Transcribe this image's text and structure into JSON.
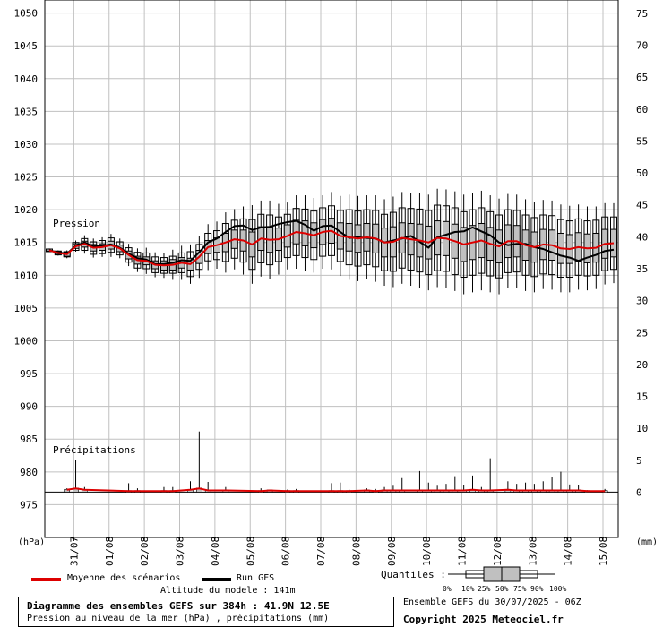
{
  "chart_data": {
    "type": "box",
    "y_left": {
      "unit_label": "(hPa)",
      "range": [
        970,
        1052
      ],
      "ticks": [
        975,
        980,
        985,
        990,
        995,
        1000,
        1005,
        1010,
        1015,
        1020,
        1025,
        1030,
        1035,
        1040,
        1045,
        1050
      ]
    },
    "y_right": {
      "unit_label": "(mm)",
      "range": [
        -7.1,
        77.1
      ],
      "ticks": [
        0,
        5,
        10,
        15,
        20,
        25,
        30,
        35,
        40,
        45,
        50,
        55,
        60,
        65,
        70,
        75
      ]
    },
    "x": {
      "range_days": [
        0,
        16
      ],
      "tick_labels": [
        "31/07",
        "01/08",
        "02/08",
        "03/08",
        "04/08",
        "05/08",
        "06/08",
        "07/08",
        "08/08",
        "09/08",
        "10/08",
        "11/08",
        "12/08",
        "13/08",
        "14/08",
        "15/08"
      ]
    },
    "annotations": {
      "pressure": "Pression",
      "precip": "Précipitations"
    },
    "pressure": {
      "days": [
        0.0,
        0.25,
        0.5,
        0.75,
        1.0,
        1.25,
        1.5,
        1.75,
        2.0,
        2.25,
        2.5,
        2.75,
        3.0,
        3.25,
        3.5,
        3.75,
        4.0,
        4.25,
        4.5,
        4.75,
        5.0,
        5.25,
        5.5,
        5.75,
        6.0,
        6.25,
        6.5,
        6.75,
        7.0,
        7.25,
        7.5,
        7.75,
        8.0,
        8.25,
        8.5,
        8.75,
        9.0,
        9.25,
        9.5,
        9.75,
        10.0,
        10.25,
        10.5,
        10.75,
        11.0,
        11.25,
        11.5,
        11.75,
        12.0,
        12.25,
        12.5,
        12.75,
        13.0,
        13.25,
        13.5,
        13.75,
        14.0,
        14.25,
        14.5,
        14.75,
        15.0,
        15.25,
        15.5,
        15.75,
        16.0
      ],
      "mean": [
        1013.8,
        1013.4,
        1013.2,
        1014.4,
        1014.8,
        1014.2,
        1014.3,
        1014.6,
        1014.1,
        1013.1,
        1012.3,
        1012.2,
        1011.6,
        1011.5,
        1011.6,
        1011.9,
        1011.7,
        1012.8,
        1014.3,
        1014.6,
        1015.0,
        1015.5,
        1015.3,
        1014.7,
        1015.6,
        1015.4,
        1015.5,
        1016.0,
        1016.6,
        1016.4,
        1016.1,
        1016.6,
        1016.8,
        1016.0,
        1015.8,
        1015.6,
        1015.8,
        1015.6,
        1015.0,
        1015.1,
        1015.7,
        1015.5,
        1015.3,
        1015.0,
        1015.7,
        1015.6,
        1015.2,
        1014.7,
        1015.0,
        1015.3,
        1014.8,
        1014.4,
        1015.2,
        1015.2,
        1014.6,
        1014.3,
        1014.7,
        1014.6,
        1014.1,
        1014.0,
        1014.3,
        1014.1,
        1014.2,
        1014.8,
        1014.9
      ],
      "gfs": [
        1013.8,
        1013.5,
        1013.3,
        1014.5,
        1015.0,
        1014.4,
        1014.5,
        1014.7,
        1014.2,
        1013.3,
        1012.6,
        1012.4,
        1011.7,
        1011.7,
        1011.9,
        1012.3,
        1012.2,
        1013.5,
        1015.0,
        1015.6,
        1016.6,
        1017.5,
        1017.6,
        1016.9,
        1017.3,
        1017.4,
        1017.8,
        1018.1,
        1018.3,
        1017.7,
        1016.8,
        1017.5,
        1017.6,
        1016.6,
        1015.7,
        1015.8,
        1015.7,
        1015.6,
        1015.0,
        1015.3,
        1015.6,
        1016.0,
        1015.1,
        1014.2,
        1015.8,
        1016.2,
        1016.6,
        1016.7,
        1017.3,
        1016.7,
        1016.1,
        1015.0,
        1014.6,
        1014.8,
        1014.8,
        1014.3,
        1014.0,
        1013.5,
        1013.0,
        1012.7,
        1012.2,
        1012.7,
        1013.1,
        1013.7,
        1013.9
      ],
      "boxes": [
        {
          "d": 0.0,
          "p0": 1013.6,
          "p10": 1013.6,
          "p25": 1013.7,
          "p75": 1014.0,
          "p90": 1014.0,
          "p100": 1014.1
        },
        {
          "d": 0.25,
          "p0": 1013.0,
          "p10": 1013.1,
          "p25": 1013.2,
          "p75": 1013.6,
          "p90": 1013.7,
          "p100": 1013.8
        },
        {
          "d": 0.5,
          "p0": 1012.6,
          "p10": 1012.8,
          "p25": 1012.9,
          "p75": 1013.5,
          "p90": 1013.6,
          "p100": 1013.8
        },
        {
          "d": 0.75,
          "p0": 1013.6,
          "p10": 1013.8,
          "p25": 1014.1,
          "p75": 1014.8,
          "p90": 1015.0,
          "p100": 1015.3
        },
        {
          "d": 1.0,
          "p0": 1013.3,
          "p10": 1013.8,
          "p25": 1014.3,
          "p75": 1015.2,
          "p90": 1015.6,
          "p100": 1016.1
        },
        {
          "d": 1.25,
          "p0": 1012.7,
          "p10": 1013.2,
          "p25": 1013.7,
          "p75": 1014.7,
          "p90": 1015.1,
          "p100": 1015.6
        },
        {
          "d": 1.5,
          "p0": 1012.8,
          "p10": 1013.3,
          "p25": 1013.8,
          "p75": 1014.8,
          "p90": 1015.3,
          "p100": 1015.8
        },
        {
          "d": 1.75,
          "p0": 1012.8,
          "p10": 1013.5,
          "p25": 1014.0,
          "p75": 1015.2,
          "p90": 1015.7,
          "p100": 1016.3
        },
        {
          "d": 2.0,
          "p0": 1012.6,
          "p10": 1013.1,
          "p25": 1013.6,
          "p75": 1014.6,
          "p90": 1015.1,
          "p100": 1015.6
        },
        {
          "d": 2.25,
          "p0": 1011.4,
          "p10": 1012.0,
          "p25": 1012.5,
          "p75": 1013.7,
          "p90": 1014.2,
          "p100": 1014.8
        },
        {
          "d": 2.5,
          "p0": 1010.5,
          "p10": 1011.1,
          "p25": 1011.7,
          "p75": 1012.9,
          "p90": 1013.5,
          "p100": 1014.1
        },
        {
          "d": 2.75,
          "p0": 1010.2,
          "p10": 1011.0,
          "p25": 1011.6,
          "p75": 1012.8,
          "p90": 1013.4,
          "p100": 1014.2
        },
        {
          "d": 3.0,
          "p0": 1009.7,
          "p10": 1010.4,
          "p25": 1011.0,
          "p75": 1012.2,
          "p90": 1012.8,
          "p100": 1013.5
        },
        {
          "d": 3.25,
          "p0": 1009.6,
          "p10": 1010.3,
          "p25": 1010.8,
          "p75": 1012.2,
          "p90": 1012.7,
          "p100": 1013.4
        },
        {
          "d": 3.5,
          "p0": 1009.3,
          "p10": 1010.3,
          "p25": 1010.8,
          "p75": 1012.4,
          "p90": 1012.9,
          "p100": 1013.9
        },
        {
          "d": 3.75,
          "p0": 1009.3,
          "p10": 1010.4,
          "p25": 1011.1,
          "p75": 1012.7,
          "p90": 1013.4,
          "p100": 1014.5
        },
        {
          "d": 4.0,
          "p0": 1008.7,
          "p10": 1009.8,
          "p25": 1010.8,
          "p75": 1012.6,
          "p90": 1013.6,
          "p100": 1014.7
        },
        {
          "d": 4.25,
          "p0": 1009.6,
          "p10": 1010.9,
          "p25": 1011.8,
          "p75": 1013.8,
          "p90": 1014.7,
          "p100": 1016.0
        },
        {
          "d": 4.5,
          "p0": 1010.8,
          "p10": 1012.2,
          "p25": 1013.3,
          "p75": 1015.3,
          "p90": 1016.4,
          "p100": 1017.8
        },
        {
          "d": 4.75,
          "p0": 1011.0,
          "p10": 1012.4,
          "p25": 1013.5,
          "p75": 1015.7,
          "p90": 1016.8,
          "p100": 1018.2
        },
        {
          "d": 5.0,
          "p0": 1010.4,
          "p10": 1012.1,
          "p25": 1013.6,
          "p75": 1016.4,
          "p90": 1017.9,
          "p100": 1019.6
        },
        {
          "d": 5.25,
          "p0": 1010.9,
          "p10": 1012.6,
          "p25": 1014.1,
          "p75": 1016.9,
          "p90": 1018.4,
          "p100": 1020.1
        },
        {
          "d": 5.5,
          "p0": 1010.1,
          "p10": 1012.0,
          "p25": 1013.7,
          "p75": 1016.9,
          "p90": 1018.6,
          "p100": 1020.5
        },
        {
          "d": 5.75,
          "p0": 1008.7,
          "p10": 1010.9,
          "p25": 1012.8,
          "p75": 1016.6,
          "p90": 1018.5,
          "p100": 1020.7
        },
        {
          "d": 6.0,
          "p0": 1009.8,
          "p10": 1011.9,
          "p25": 1013.8,
          "p75": 1017.4,
          "p90": 1019.3,
          "p100": 1021.4
        },
        {
          "d": 6.25,
          "p0": 1009.4,
          "p10": 1011.6,
          "p25": 1013.5,
          "p75": 1017.3,
          "p90": 1019.2,
          "p100": 1021.4
        },
        {
          "d": 6.5,
          "p0": 1010.1,
          "p10": 1012.1,
          "p25": 1013.8,
          "p75": 1017.2,
          "p90": 1018.9,
          "p100": 1020.9
        },
        {
          "d": 6.75,
          "p0": 1010.9,
          "p10": 1012.7,
          "p25": 1014.3,
          "p75": 1017.7,
          "p90": 1019.3,
          "p100": 1021.1
        },
        {
          "d": 7.0,
          "p0": 1011.0,
          "p10": 1013.0,
          "p25": 1014.8,
          "p75": 1018.4,
          "p90": 1020.2,
          "p100": 1022.2
        },
        {
          "d": 7.25,
          "p0": 1010.6,
          "p10": 1012.7,
          "p25": 1014.5,
          "p75": 1018.3,
          "p90": 1020.1,
          "p100": 1022.2
        },
        {
          "d": 7.5,
          "p0": 1010.4,
          "p10": 1012.4,
          "p25": 1014.2,
          "p75": 1018.0,
          "p90": 1019.8,
          "p100": 1021.8
        },
        {
          "d": 7.75,
          "p0": 1011.0,
          "p10": 1012.9,
          "p25": 1014.7,
          "p75": 1018.5,
          "p90": 1020.3,
          "p100": 1022.2
        },
        {
          "d": 8.0,
          "p0": 1010.9,
          "p10": 1013.0,
          "p25": 1014.9,
          "p75": 1018.7,
          "p90": 1020.6,
          "p100": 1022.7
        },
        {
          "d": 8.25,
          "p0": 1009.9,
          "p10": 1012.1,
          "p25": 1014.0,
          "p75": 1018.0,
          "p90": 1019.9,
          "p100": 1022.1
        },
        {
          "d": 8.5,
          "p0": 1009.3,
          "p10": 1011.6,
          "p25": 1013.7,
          "p75": 1017.9,
          "p90": 1020.0,
          "p100": 1022.3
        },
        {
          "d": 8.75,
          "p0": 1009.1,
          "p10": 1011.4,
          "p25": 1013.5,
          "p75": 1017.7,
          "p90": 1019.8,
          "p100": 1022.1
        },
        {
          "d": 9.0,
          "p0": 1009.4,
          "p10": 1011.6,
          "p25": 1013.7,
          "p75": 1017.9,
          "p90": 1020.0,
          "p100": 1022.2
        },
        {
          "d": 9.25,
          "p0": 1009.0,
          "p10": 1011.3,
          "p25": 1013.4,
          "p75": 1017.8,
          "p90": 1019.9,
          "p100": 1022.2
        },
        {
          "d": 9.5,
          "p0": 1008.4,
          "p10": 1010.7,
          "p25": 1012.8,
          "p75": 1017.2,
          "p90": 1019.3,
          "p100": 1021.6
        },
        {
          "d": 9.75,
          "p0": 1008.2,
          "p10": 1010.6,
          "p25": 1012.8,
          "p75": 1017.4,
          "p90": 1019.6,
          "p100": 1022.0
        },
        {
          "d": 10.0,
          "p0": 1008.7,
          "p10": 1011.1,
          "p25": 1013.4,
          "p75": 1018.0,
          "p90": 1020.3,
          "p100": 1022.7
        },
        {
          "d": 10.25,
          "p0": 1008.4,
          "p10": 1010.8,
          "p25": 1013.1,
          "p75": 1017.9,
          "p90": 1020.2,
          "p100": 1022.6
        },
        {
          "d": 10.5,
          "p0": 1008.0,
          "p10": 1010.5,
          "p25": 1012.8,
          "p75": 1017.8,
          "p90": 1020.1,
          "p100": 1022.6
        },
        {
          "d": 10.75,
          "p0": 1007.7,
          "p10": 1010.1,
          "p25": 1012.5,
          "p75": 1017.5,
          "p90": 1019.9,
          "p100": 1022.3
        },
        {
          "d": 11.0,
          "p0": 1008.2,
          "p10": 1010.7,
          "p25": 1013.1,
          "p75": 1018.3,
          "p90": 1020.7,
          "p100": 1023.2
        },
        {
          "d": 11.25,
          "p0": 1008.1,
          "p10": 1010.6,
          "p25": 1013.0,
          "p75": 1018.2,
          "p90": 1020.6,
          "p100": 1023.1
        },
        {
          "d": 11.5,
          "p0": 1007.6,
          "p10": 1010.1,
          "p25": 1012.6,
          "p75": 1017.8,
          "p90": 1020.3,
          "p100": 1022.8
        },
        {
          "d": 11.75,
          "p0": 1007.1,
          "p10": 1009.7,
          "p25": 1012.1,
          "p75": 1017.3,
          "p90": 1019.7,
          "p100": 1022.3
        },
        {
          "d": 12.0,
          "p0": 1007.4,
          "p10": 1010.0,
          "p25": 1012.4,
          "p75": 1017.6,
          "p90": 1020.0,
          "p100": 1022.6
        },
        {
          "d": 12.25,
          "p0": 1007.7,
          "p10": 1010.3,
          "p25": 1012.7,
          "p75": 1017.9,
          "p90": 1020.3,
          "p100": 1022.9
        },
        {
          "d": 12.5,
          "p0": 1007.4,
          "p10": 1009.9,
          "p25": 1012.3,
          "p75": 1017.3,
          "p90": 1019.7,
          "p100": 1022.2
        },
        {
          "d": 12.75,
          "p0": 1007.1,
          "p10": 1009.6,
          "p25": 1011.9,
          "p75": 1016.9,
          "p90": 1019.2,
          "p100": 1021.7
        },
        {
          "d": 13.0,
          "p0": 1008.0,
          "p10": 1010.4,
          "p25": 1012.7,
          "p75": 1017.7,
          "p90": 1020.0,
          "p100": 1022.4
        },
        {
          "d": 13.25,
          "p0": 1008.1,
          "p10": 1010.5,
          "p25": 1012.8,
          "p75": 1017.6,
          "p90": 1019.9,
          "p100": 1022.3
        },
        {
          "d": 13.5,
          "p0": 1007.6,
          "p10": 1010.0,
          "p25": 1012.3,
          "p75": 1016.9,
          "p90": 1019.2,
          "p100": 1021.6
        },
        {
          "d": 13.75,
          "p0": 1007.4,
          "p10": 1009.8,
          "p25": 1012.0,
          "p75": 1016.6,
          "p90": 1018.8,
          "p100": 1021.2
        },
        {
          "d": 14.0,
          "p0": 1007.9,
          "p10": 1010.2,
          "p25": 1012.4,
          "p75": 1017.0,
          "p90": 1019.2,
          "p100": 1021.5
        },
        {
          "d": 14.25,
          "p0": 1007.8,
          "p10": 1010.1,
          "p25": 1012.3,
          "p75": 1016.9,
          "p90": 1019.1,
          "p100": 1021.4
        },
        {
          "d": 14.5,
          "p0": 1007.4,
          "p10": 1009.7,
          "p25": 1011.8,
          "p75": 1016.4,
          "p90": 1018.5,
          "p100": 1020.8
        },
        {
          "d": 14.75,
          "p0": 1007.4,
          "p10": 1009.7,
          "p25": 1011.8,
          "p75": 1016.2,
          "p90": 1018.3,
          "p100": 1020.6
        },
        {
          "d": 15.0,
          "p0": 1007.8,
          "p10": 1010.0,
          "p25": 1012.1,
          "p75": 1016.5,
          "p90": 1018.6,
          "p100": 1020.8
        },
        {
          "d": 15.25,
          "p0": 1007.7,
          "p10": 1009.9,
          "p25": 1011.9,
          "p75": 1016.3,
          "p90": 1018.3,
          "p100": 1020.5
        },
        {
          "d": 15.5,
          "p0": 1007.9,
          "p10": 1010.0,
          "p25": 1012.0,
          "p75": 1016.4,
          "p90": 1018.4,
          "p100": 1020.5
        },
        {
          "d": 15.75,
          "p0": 1008.6,
          "p10": 1010.7,
          "p25": 1012.6,
          "p75": 1017.0,
          "p90": 1018.9,
          "p100": 1021.0
        },
        {
          "d": 16.0,
          "p0": 1008.8,
          "p10": 1010.9,
          "p25": 1012.8,
          "p75": 1017.0,
          "p90": 1018.9,
          "p100": 1021.0
        }
      ]
    },
    "precipitation": {
      "days": [
        0.5,
        0.75,
        1.0,
        2.25,
        2.5,
        3.25,
        3.5,
        4.0,
        4.25,
        4.5,
        5.0,
        6.0,
        6.25,
        6.75,
        7.0,
        8.0,
        8.25,
        8.5,
        9.0,
        9.25,
        9.5,
        9.75,
        10.0,
        10.5,
        10.75,
        11.0,
        11.25,
        11.5,
        11.75,
        12.0,
        12.25,
        12.5,
        13.0,
        13.25,
        13.5,
        13.75,
        14.0,
        14.25,
        14.5,
        14.75,
        15.0,
        15.25,
        15.75
      ],
      "mean": [
        0.3,
        0.5,
        0.3,
        0.1,
        0.1,
        0.1,
        0.1,
        0.3,
        0.5,
        0.2,
        0.2,
        0.1,
        0.2,
        0.1,
        0.1,
        0.1,
        0.1,
        0.1,
        0.2,
        0.1,
        0.2,
        0.2,
        0.2,
        0.2,
        0.2,
        0.2,
        0.2,
        0.2,
        0.2,
        0.3,
        0.2,
        0.2,
        0.3,
        0.2,
        0.2,
        0.2,
        0.2,
        0.2,
        0.2,
        0.2,
        0.2,
        0.1,
        0.1
      ],
      "max": [
        0.6,
        5.1,
        0.8,
        1.4,
        0.6,
        0.8,
        0.8,
        1.7,
        9.5,
        1.6,
        0.8,
        0.6,
        0.4,
        0.4,
        0.5,
        1.4,
        1.5,
        0.4,
        0.6,
        0.5,
        0.8,
        1.0,
        2.2,
        3.3,
        1.5,
        1.0,
        1.3,
        2.5,
        1.1,
        2.6,
        0.8,
        5.3,
        1.7,
        1.3,
        1.5,
        1.3,
        1.7,
        2.4,
        3.2,
        1.2,
        1.1,
        0.3,
        0.5
      ]
    },
    "legend": [
      {
        "label": "Moyenne des scénarios",
        "color": "#dd0000"
      },
      {
        "label": "Run GFS",
        "color": "#000000"
      }
    ],
    "quantile_legend": {
      "title": "Quantiles :",
      "labels": [
        "0%",
        "10%",
        "25%",
        "50%",
        "75%",
        "90%",
        "100%"
      ]
    }
  },
  "footer": {
    "altitude": "Altitude du modele : 141m",
    "title": "Diagramme des ensembles GEFS sur 384h : 41.9N 12.5E",
    "subtitle": "Pression au niveau de la mer (hPa) , précipitations (mm)",
    "run": "Ensemble GEFS du 30/07/2025 - 06Z",
    "copyright": "Copyright 2025 Meteociel.fr"
  },
  "colors": {
    "mean": "#dd0000",
    "gfs": "#000000",
    "grid": "#c0c0c0",
    "box_fill": "#c0c0c0",
    "precip_mean": "#dd0000"
  }
}
